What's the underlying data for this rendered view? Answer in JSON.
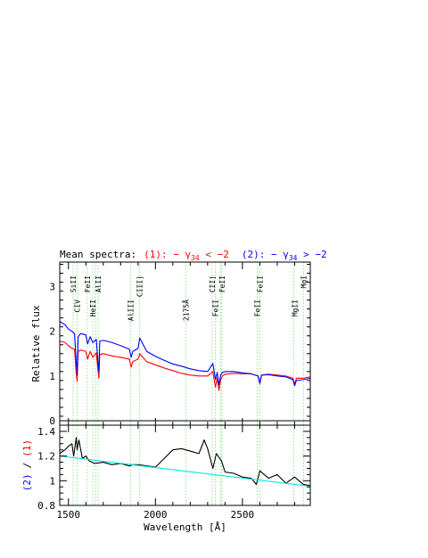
{
  "chart_data": [
    {
      "type": "line",
      "title_parts": [
        {
          "text": "Mean spectra:",
          "color": "#000000"
        },
        {
          "text": "(1): − γ",
          "color": "#ff0000"
        },
        {
          "text": "34",
          "color": "#ff0000",
          "sub": true
        },
        {
          "text": " < −2",
          "color": "#ff0000"
        },
        {
          "text": "(2): − γ",
          "color": "#0000ff"
        },
        {
          "text": "34",
          "color": "#0000ff",
          "sub": true
        },
        {
          "text": " > −2",
          "color": "#0000ff"
        }
      ],
      "ylabel": "Relative flux",
      "xlim": [
        1450,
        2890
      ],
      "ylim": [
        -0.1,
        3.55
      ],
      "yticks": [
        0,
        1,
        2,
        3
      ],
      "xticks": [
        1500,
        2000,
        2500
      ],
      "grid": false,
      "zero_line": true,
      "line_markers": [
        {
          "label": "SiII",
          "x": 1527,
          "pos": "top"
        },
        {
          "label": "CIV",
          "x": 1549,
          "pos": "low"
        },
        {
          "label": "FeII",
          "x": 1608,
          "pos": "top"
        },
        {
          "label": "HeII",
          "x": 1640,
          "pos": "low"
        },
        {
          "label": "AlII",
          "x": 1671,
          "pos": "top"
        },
        {
          "label": "AlIII",
          "x": 1857,
          "pos": "low"
        },
        {
          "label": "CIII]",
          "x": 1909,
          "pos": "top"
        },
        {
          "label": "2175Å",
          "x": 2175,
          "pos": "low"
        },
        {
          "label": "CII]",
          "x": 2326,
          "pos": "top"
        },
        {
          "label": "FeII",
          "x": 2344,
          "pos": "low"
        },
        {
          "label": "FeII",
          "x": 2382,
          "pos": "top"
        },
        {
          "label": "FeII",
          "x": 2600,
          "pos": "top"
        },
        {
          "label": "FeII",
          "x": 2586,
          "pos": "low"
        },
        {
          "label": "MgII",
          "x": 2800,
          "pos": "low"
        },
        {
          "label": "MgI",
          "x": 2852,
          "pos": "top"
        }
      ],
      "marker_lines": [
        1527,
        1549,
        1608,
        1640,
        1657,
        1671,
        1857,
        1909,
        2175,
        2326,
        2344,
        2374,
        2382,
        2586,
        2600,
        2796,
        2852
      ],
      "series": [
        {
          "color": "#ff0000",
          "x": [
            1450,
            1480,
            1500,
            1520,
            1535,
            1545,
            1550,
            1556,
            1570,
            1600,
            1610,
            1625,
            1640,
            1660,
            1670,
            1675,
            1680,
            1700,
            1750,
            1800,
            1850,
            1860,
            1870,
            1900,
            1910,
            1950,
            2000,
            2050,
            2100,
            2150,
            2200,
            2250,
            2300,
            2330,
            2345,
            2355,
            2365,
            2375,
            2385,
            2400,
            2450,
            2500,
            2550,
            2590,
            2600,
            2610,
            2650,
            2700,
            2750,
            2790,
            2800,
            2810,
            2850,
            2890
          ],
          "y": [
            1.78,
            1.75,
            1.68,
            1.62,
            1.6,
            1.05,
            0.88,
            1.55,
            1.58,
            1.55,
            1.38,
            1.55,
            1.42,
            1.52,
            1.12,
            0.95,
            1.48,
            1.5,
            1.45,
            1.42,
            1.38,
            1.2,
            1.32,
            1.38,
            1.5,
            1.32,
            1.25,
            1.18,
            1.12,
            1.06,
            1.02,
            1.0,
            1.0,
            1.1,
            0.75,
            0.95,
            0.68,
            0.92,
            1.0,
            1.04,
            1.06,
            1.05,
            1.05,
            1.0,
            0.82,
            1.02,
            1.04,
            1.02,
            1.0,
            0.95,
            0.82,
            0.95,
            0.95,
            0.98
          ]
        },
        {
          "color": "#0000ff",
          "x": [
            1450,
            1480,
            1500,
            1520,
            1535,
            1545,
            1550,
            1556,
            1570,
            1600,
            1610,
            1625,
            1640,
            1660,
            1670,
            1675,
            1680,
            1700,
            1750,
            1800,
            1850,
            1860,
            1870,
            1900,
            1910,
            1950,
            2000,
            2050,
            2100,
            2150,
            2200,
            2250,
            2300,
            2330,
            2345,
            2355,
            2365,
            2375,
            2385,
            2400,
            2450,
            2500,
            2550,
            2590,
            2600,
            2610,
            2650,
            2700,
            2750,
            2790,
            2800,
            2810,
            2850,
            2890
          ],
          "y": [
            2.22,
            2.15,
            2.05,
            2.0,
            1.95,
            1.3,
            1.02,
            1.88,
            1.95,
            1.92,
            1.72,
            1.88,
            1.75,
            1.82,
            1.3,
            1.1,
            1.78,
            1.8,
            1.75,
            1.68,
            1.6,
            1.42,
            1.55,
            1.62,
            1.85,
            1.55,
            1.44,
            1.35,
            1.27,
            1.22,
            1.16,
            1.12,
            1.1,
            1.28,
            0.92,
            1.08,
            0.8,
            1.02,
            1.08,
            1.1,
            1.1,
            1.07,
            1.05,
            1.0,
            0.85,
            1.02,
            1.03,
            1.0,
            0.98,
            0.92,
            0.78,
            0.9,
            0.92,
            0.95
          ]
        }
      ]
    },
    {
      "type": "line",
      "ylabel_parts": [
        {
          "text": "(2)",
          "color": "#0000ff"
        },
        {
          "text": "/",
          "color": "#000000"
        },
        {
          "text": "(1)",
          "color": "#ff0000"
        }
      ],
      "xlabel": "Wavelength [Å]",
      "xlim": [
        1450,
        2890
      ],
      "ylim": [
        0.8,
        1.45
      ],
      "yticks": [
        0.8,
        1.0,
        1.2,
        1.4
      ],
      "ytick_labels": [
        "0.8",
        "1",
        "1.2",
        "1.4"
      ],
      "xticks": [
        1500,
        2000,
        2500
      ],
      "grid": false,
      "marker_lines": [
        1527,
        1549,
        1608,
        1640,
        1657,
        1671,
        1857,
        1909,
        2175,
        2326,
        2344,
        2374,
        2382,
        2586,
        2600,
        2796,
        2852
      ],
      "series": [
        {
          "color": "#000000",
          "x": [
            1450,
            1480,
            1500,
            1520,
            1530,
            1545,
            1550,
            1560,
            1580,
            1600,
            1620,
            1650,
            1700,
            1750,
            1800,
            1850,
            1870,
            1900,
            1950,
            2000,
            2050,
            2100,
            2150,
            2200,
            2250,
            2280,
            2300,
            2330,
            2350,
            2380,
            2400,
            2450,
            2500,
            2550,
            2580,
            2600,
            2650,
            2700,
            2750,
            2800,
            2850,
            2890
          ],
          "y": [
            1.22,
            1.25,
            1.28,
            1.3,
            1.2,
            1.35,
            1.25,
            1.33,
            1.18,
            1.2,
            1.16,
            1.14,
            1.15,
            1.13,
            1.14,
            1.12,
            1.13,
            1.13,
            1.12,
            1.11,
            1.18,
            1.25,
            1.26,
            1.24,
            1.22,
            1.33,
            1.26,
            1.1,
            1.22,
            1.16,
            1.07,
            1.06,
            1.03,
            1.02,
            0.97,
            1.08,
            1.02,
            1.05,
            0.98,
            1.03,
            0.97,
            0.96
          ]
        },
        {
          "color": "#00e5e5",
          "x": [
            1450,
            2890
          ],
          "y": [
            1.2,
            0.955
          ]
        }
      ]
    }
  ]
}
